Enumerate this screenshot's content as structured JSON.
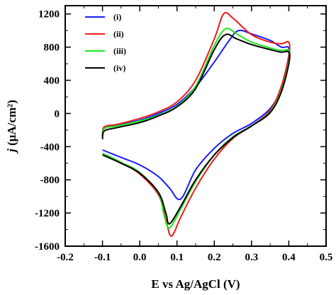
{
  "chart_data": {
    "type": "line",
    "title": "",
    "xlabel": "E vs Ag/AgCl (V)",
    "ylabel_italic": "j",
    "ylabel_rest": " (μA/cm²)",
    "xlim": [
      -0.2,
      0.5
    ],
    "ylim": [
      -1600,
      1300
    ],
    "xticks": [
      -0.2,
      -0.1,
      0.0,
      0.1,
      0.2,
      0.3,
      0.4,
      0.5
    ],
    "xtick_labels": [
      "-0.2",
      "-0.1",
      "0.0",
      "0.1",
      "0.2",
      "0.3",
      "0.4",
      "0.5"
    ],
    "yticks": [
      -1600,
      -1200,
      -800,
      -400,
      0,
      400,
      800,
      1200
    ],
    "ytick_labels": [
      "-1600",
      "-1200",
      "-800",
      "-400",
      "0",
      "400",
      "800",
      "1200"
    ],
    "grid": false,
    "legend_position": "top-left",
    "series": [
      {
        "name": "(i)",
        "color": "#1a1aff",
        "points": [
          [
            -0.1,
            -270
          ],
          [
            -0.095,
            -180
          ],
          [
            -0.06,
            -140
          ],
          [
            0.0,
            -80
          ],
          [
            0.05,
            0
          ],
          [
            0.1,
            110
          ],
          [
            0.15,
            320
          ],
          [
            0.2,
            620
          ],
          [
            0.24,
            880
          ],
          [
            0.265,
            1000
          ],
          [
            0.3,
            960
          ],
          [
            0.35,
            880
          ],
          [
            0.38,
            800
          ],
          [
            0.4,
            790
          ],
          [
            0.4,
            600
          ],
          [
            0.38,
            300
          ],
          [
            0.35,
            60
          ],
          [
            0.3,
            -120
          ],
          [
            0.25,
            -240
          ],
          [
            0.2,
            -420
          ],
          [
            0.15,
            -680
          ],
          [
            0.11,
            -1030
          ],
          [
            0.08,
            -900
          ],
          [
            0.05,
            -760
          ],
          [
            0.0,
            -620
          ],
          [
            -0.05,
            -530
          ],
          [
            -0.1,
            -440
          ]
        ]
      },
      {
        "name": "(ii)",
        "color": "#ee1c1c",
        "points": [
          [
            -0.1,
            -260
          ],
          [
            -0.095,
            -160
          ],
          [
            -0.06,
            -130
          ],
          [
            0.0,
            -60
          ],
          [
            0.05,
            20
          ],
          [
            0.1,
            140
          ],
          [
            0.15,
            400
          ],
          [
            0.2,
            900
          ],
          [
            0.225,
            1200
          ],
          [
            0.25,
            1150
          ],
          [
            0.3,
            950
          ],
          [
            0.35,
            860
          ],
          [
            0.38,
            840
          ],
          [
            0.4,
            860
          ],
          [
            0.4,
            700
          ],
          [
            0.38,
            330
          ],
          [
            0.35,
            40
          ],
          [
            0.3,
            -150
          ],
          [
            0.25,
            -300
          ],
          [
            0.2,
            -550
          ],
          [
            0.15,
            -900
          ],
          [
            0.11,
            -1250
          ],
          [
            0.085,
            -1480
          ],
          [
            0.07,
            -1280
          ],
          [
            0.05,
            -980
          ],
          [
            0.0,
            -730
          ],
          [
            -0.05,
            -590
          ],
          [
            -0.1,
            -480
          ]
        ]
      },
      {
        "name": "(iii)",
        "color": "#19e619",
        "points": [
          [
            -0.1,
            -280
          ],
          [
            -0.095,
            -180
          ],
          [
            -0.06,
            -150
          ],
          [
            0.0,
            -90
          ],
          [
            0.05,
            -20
          ],
          [
            0.1,
            90
          ],
          [
            0.15,
            330
          ],
          [
            0.2,
            820
          ],
          [
            0.23,
            1020
          ],
          [
            0.26,
            960
          ],
          [
            0.3,
            860
          ],
          [
            0.35,
            790
          ],
          [
            0.38,
            760
          ],
          [
            0.4,
            760
          ],
          [
            0.4,
            620
          ],
          [
            0.38,
            280
          ],
          [
            0.35,
            20
          ],
          [
            0.3,
            -150
          ],
          [
            0.25,
            -280
          ],
          [
            0.2,
            -500
          ],
          [
            0.15,
            -820
          ],
          [
            0.11,
            -1150
          ],
          [
            0.08,
            -1380
          ],
          [
            0.065,
            -1220
          ],
          [
            0.05,
            -960
          ],
          [
            0.0,
            -710
          ],
          [
            -0.05,
            -590
          ],
          [
            -0.1,
            -480
          ]
        ]
      },
      {
        "name": "(iv)",
        "color": "#000000",
        "points": [
          [
            -0.1,
            -310
          ],
          [
            -0.095,
            -210
          ],
          [
            -0.06,
            -170
          ],
          [
            0.0,
            -110
          ],
          [
            0.05,
            -30
          ],
          [
            0.1,
            80
          ],
          [
            0.15,
            300
          ],
          [
            0.2,
            770
          ],
          [
            0.23,
            950
          ],
          [
            0.26,
            900
          ],
          [
            0.3,
            830
          ],
          [
            0.35,
            770
          ],
          [
            0.38,
            740
          ],
          [
            0.4,
            740
          ],
          [
            0.4,
            600
          ],
          [
            0.38,
            260
          ],
          [
            0.35,
            10
          ],
          [
            0.3,
            -150
          ],
          [
            0.25,
            -290
          ],
          [
            0.2,
            -500
          ],
          [
            0.15,
            -800
          ],
          [
            0.11,
            -1120
          ],
          [
            0.08,
            -1330
          ],
          [
            0.07,
            -1200
          ],
          [
            0.05,
            -950
          ],
          [
            0.0,
            -720
          ],
          [
            -0.05,
            -600
          ],
          [
            -0.1,
            -500
          ]
        ]
      }
    ]
  }
}
